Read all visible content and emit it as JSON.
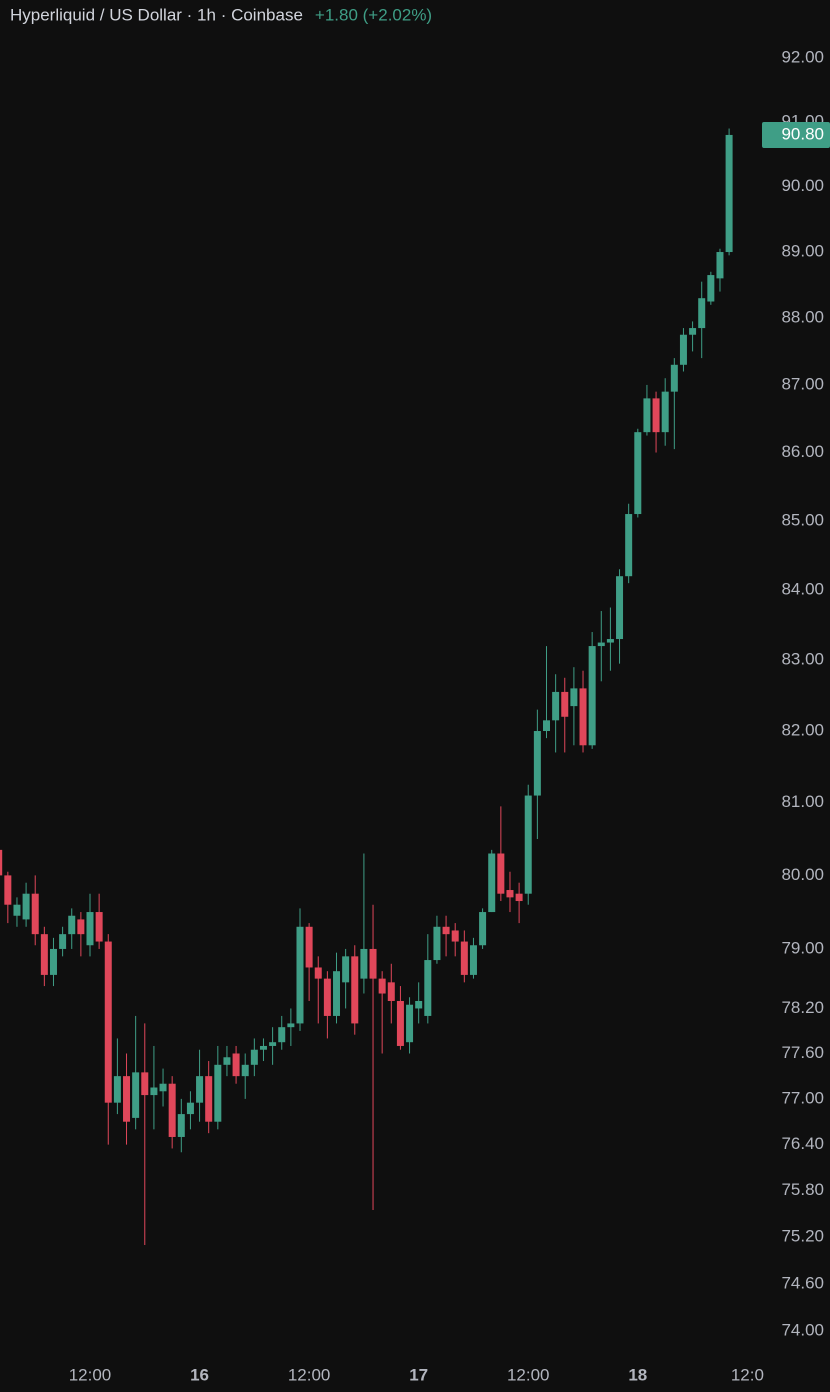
{
  "chart_data": {
    "type": "candlestick",
    "title": "Hyperliquid / US Dollar · 1h · Coinbase",
    "change": "+1.80 (+2.02%)",
    "log_scale": true,
    "grid": false,
    "up_color": "#3f9e86",
    "down_color": "#e0475a",
    "categories": [
      null,
      null,
      null,
      null,
      null,
      null,
      null,
      null,
      null,
      null,
      "12:00",
      null,
      null,
      null,
      null,
      null,
      null,
      null,
      null,
      null,
      null,
      null,
      "16",
      null,
      null,
      null,
      null,
      null,
      null,
      null,
      null,
      null,
      null,
      null,
      "12:00",
      null,
      null,
      null,
      null,
      null,
      null,
      null,
      null,
      null,
      null,
      null,
      "17",
      null,
      null,
      null,
      null,
      null,
      null,
      null,
      null,
      null,
      null,
      null,
      "12:00",
      null,
      null,
      null,
      null,
      null,
      null,
      null,
      null,
      null,
      null,
      null,
      "18",
      null,
      null,
      null,
      null,
      null,
      null,
      null,
      null,
      null,
      null,
      null,
      "12:0"
    ],
    "open": [
      80.35,
      80.0,
      79.45,
      79.4,
      79.75,
      79.2,
      78.65,
      79.0,
      79.2,
      79.4,
      79.05,
      79.5,
      79.1,
      76.95,
      77.3,
      76.75,
      77.35,
      77.05,
      77.1,
      77.2,
      76.5,
      76.8,
      76.95,
      77.3,
      76.7,
      77.45,
      77.6,
      77.3,
      77.45,
      77.65,
      77.7,
      77.75,
      77.95,
      78.0,
      79.3,
      78.75,
      78.6,
      78.1,
      78.55,
      78.9,
      78.6,
      79.0,
      78.6,
      78.55,
      78.3,
      77.75,
      78.2,
      78.1,
      78.85,
      79.3,
      79.25,
      79.1,
      78.65,
      79.05,
      79.5,
      80.3,
      79.8,
      79.75,
      79.75,
      81.1,
      82.0,
      82.15,
      82.55,
      82.35,
      82.6,
      81.8,
      83.2,
      83.25,
      83.3,
      84.2,
      85.1,
      86.3,
      86.8,
      86.3,
      86.9,
      87.3,
      87.75,
      87.85,
      88.25,
      88.6,
      89.0,
      null,
      null
    ],
    "high": [
      80.45,
      80.05,
      79.7,
      79.9,
      80.0,
      79.3,
      79.15,
      79.3,
      79.55,
      79.5,
      79.75,
      79.75,
      79.2,
      77.8,
      77.6,
      78.1,
      78.0,
      77.7,
      77.4,
      77.3,
      77.0,
      77.1,
      77.65,
      77.5,
      77.7,
      77.7,
      77.7,
      77.6,
      77.8,
      77.8,
      77.95,
      78.1,
      78.2,
      79.55,
      79.35,
      78.9,
      78.7,
      78.95,
      79.0,
      79.05,
      80.3,
      79.6,
      78.7,
      78.8,
      78.5,
      78.35,
      78.55,
      79.2,
      79.45,
      79.45,
      79.35,
      79.25,
      79.15,
      79.55,
      80.35,
      80.95,
      80.05,
      79.9,
      81.25,
      82.3,
      83.2,
      82.8,
      82.75,
      82.9,
      82.85,
      83.4,
      83.7,
      83.75,
      84.3,
      85.25,
      86.35,
      87.0,
      86.9,
      87.1,
      87.4,
      87.85,
      87.95,
      88.55,
      88.7,
      89.05,
      90.9,
      null,
      null
    ],
    "low": [
      79.95,
      79.35,
      79.3,
      79.3,
      79.05,
      78.5,
      78.5,
      78.9,
      79.0,
      78.9,
      78.9,
      79.0,
      76.4,
      76.8,
      76.4,
      76.6,
      75.1,
      76.6,
      76.9,
      76.35,
      76.3,
      76.6,
      76.7,
      76.55,
      76.6,
      77.3,
      77.2,
      77.0,
      77.3,
      77.5,
      77.45,
      77.65,
      77.7,
      77.9,
      78.3,
      78.0,
      77.8,
      78.0,
      78.2,
      77.85,
      78.4,
      75.55,
      77.6,
      78.0,
      77.65,
      77.6,
      78.0,
      78.0,
      78.8,
      78.9,
      78.9,
      78.55,
      78.6,
      79.0,
      79.5,
      79.65,
      79.5,
      79.35,
      79.6,
      80.5,
      81.9,
      81.7,
      81.7,
      81.8,
      81.7,
      81.75,
      82.7,
      82.85,
      82.95,
      84.1,
      85.05,
      86.25,
      86.0,
      86.1,
      86.05,
      87.2,
      87.5,
      87.4,
      88.2,
      88.4,
      88.95,
      null,
      null
    ],
    "close": [
      80.0,
      79.6,
      79.6,
      79.75,
      79.2,
      78.65,
      79.0,
      79.2,
      79.45,
      79.2,
      79.5,
      79.1,
      76.95,
      77.3,
      76.7,
      77.35,
      77.05,
      77.15,
      77.2,
      76.5,
      76.8,
      76.95,
      77.3,
      76.7,
      77.45,
      77.55,
      77.3,
      77.45,
      77.65,
      77.7,
      77.75,
      77.95,
      78.0,
      79.3,
      78.75,
      78.6,
      78.1,
      78.7,
      78.9,
      78.0,
      79.0,
      78.6,
      78.4,
      78.3,
      77.7,
      78.25,
      78.3,
      78.85,
      79.3,
      79.2,
      79.1,
      78.65,
      79.05,
      79.5,
      80.3,
      79.75,
      79.7,
      79.65,
      81.1,
      82.0,
      82.15,
      82.55,
      82.2,
      82.6,
      81.8,
      83.2,
      83.25,
      83.3,
      84.2,
      85.1,
      86.3,
      86.8,
      86.3,
      86.9,
      87.3,
      87.75,
      87.85,
      88.3,
      88.65,
      89.0,
      90.8,
      null,
      null
    ],
    "last_price": {
      "value": 90.8,
      "label": "90.80"
    },
    "ylim": [
      73.7,
      92.92
    ],
    "yticks": [
      {
        "value": 92,
        "label": "92.00"
      },
      {
        "value": 91,
        "label": "91.00"
      },
      {
        "value": 90,
        "label": "90.00"
      },
      {
        "value": 89,
        "label": "89.00"
      },
      {
        "value": 88,
        "label": "88.00"
      },
      {
        "value": 87,
        "label": "87.00"
      },
      {
        "value": 86,
        "label": "86.00"
      },
      {
        "value": 85,
        "label": "85.00"
      },
      {
        "value": 84,
        "label": "84.00"
      },
      {
        "value": 83,
        "label": "83.00"
      },
      {
        "value": 82,
        "label": "82.00"
      },
      {
        "value": 81,
        "label": "81.00"
      },
      {
        "value": 80,
        "label": "80.00"
      },
      {
        "value": 79,
        "label": "79.00"
      },
      {
        "value": 78.2,
        "label": "78.20"
      },
      {
        "value": 77.6,
        "label": "77.60"
      },
      {
        "value": 77,
        "label": "77.00"
      },
      {
        "value": 76.4,
        "label": "76.40"
      },
      {
        "value": 75.8,
        "label": "75.80"
      },
      {
        "value": 75.2,
        "label": "75.20"
      },
      {
        "value": 74.6,
        "label": "74.60"
      },
      {
        "value": 74,
        "label": "74.00"
      }
    ]
  }
}
